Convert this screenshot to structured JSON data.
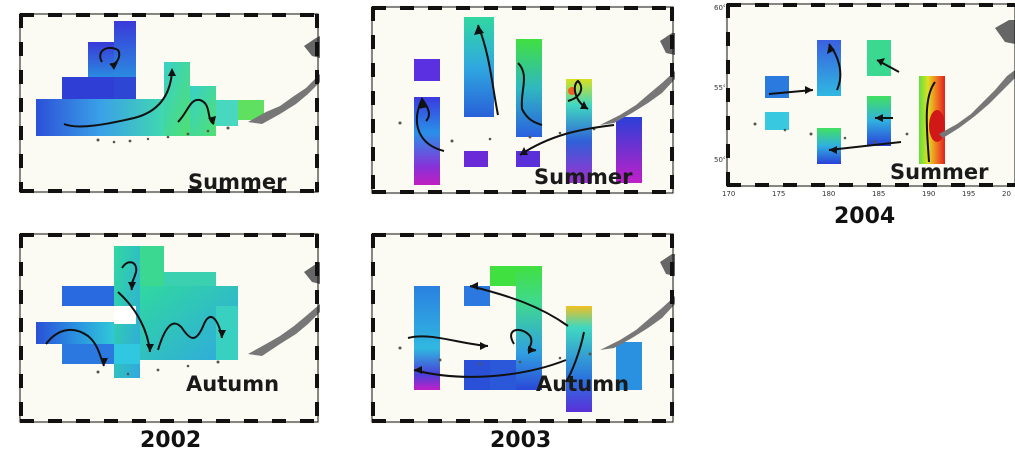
{
  "colors": {
    "map_background": "#fbfbf3",
    "land": "#777777",
    "frame": "#111111",
    "arrow": "#111111"
  },
  "panels": [
    {
      "id": "2002-summer",
      "season": "Summer"
    },
    {
      "id": "2003-summer",
      "season": "Summer"
    },
    {
      "id": "2004-summer",
      "season": "Summer",
      "lat_labels": [
        "60°",
        "55°",
        "50°"
      ],
      "lon_labels": [
        "170",
        "175",
        "180",
        "185",
        "190",
        "195",
        "20"
      ]
    },
    {
      "id": "2002-autumn",
      "season": "Autumn"
    },
    {
      "id": "2003-autumn",
      "season": "Autumn"
    }
  ],
  "years": [
    "2002",
    "2003",
    "2004"
  ]
}
